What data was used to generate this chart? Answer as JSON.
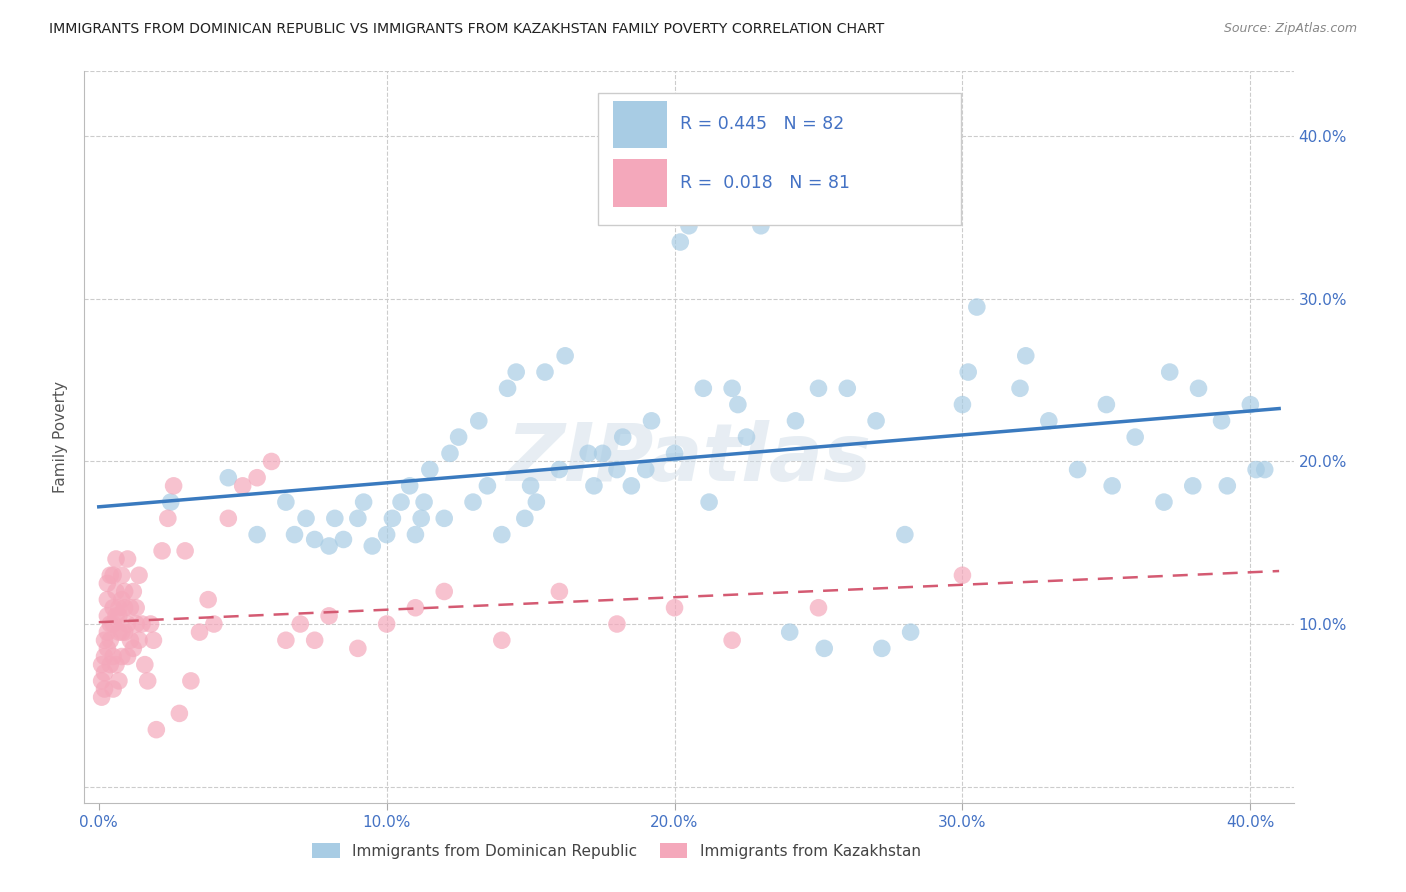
{
  "title": "IMMIGRANTS FROM DOMINICAN REPUBLIC VS IMMIGRANTS FROM KAZAKHSTAN FAMILY POVERTY CORRELATION CHART",
  "source": "Source: ZipAtlas.com",
  "ylabel": "Family Poverty",
  "ytick_values": [
    0.0,
    0.1,
    0.2,
    0.3,
    0.4
  ],
  "xtick_values": [
    0.0,
    0.1,
    0.2,
    0.3,
    0.4
  ],
  "xlim": [
    -0.005,
    0.415
  ],
  "ylim": [
    -0.01,
    0.44
  ],
  "legend1_label": "Immigrants from Dominican Republic",
  "legend2_label": "Immigrants from Kazakhstan",
  "R1": 0.445,
  "N1": 82,
  "R2": 0.018,
  "N2": 81,
  "color_blue": "#a8cce4",
  "color_pink": "#f4a8bb",
  "line_blue": "#3a7abf",
  "line_pink": "#d45a72",
  "axis_color": "#4472c4",
  "watermark": "ZIPatlas",
  "background": "#ffffff",
  "blue_scatter_x": [
    0.025,
    0.045,
    0.055,
    0.065,
    0.068,
    0.072,
    0.075,
    0.08,
    0.082,
    0.085,
    0.09,
    0.092,
    0.095,
    0.1,
    0.102,
    0.105,
    0.108,
    0.11,
    0.112,
    0.113,
    0.115,
    0.12,
    0.122,
    0.125,
    0.13,
    0.132,
    0.135,
    0.14,
    0.142,
    0.145,
    0.148,
    0.15,
    0.152,
    0.155,
    0.16,
    0.162,
    0.17,
    0.172,
    0.175,
    0.18,
    0.182,
    0.185,
    0.19,
    0.192,
    0.2,
    0.202,
    0.205,
    0.21,
    0.212,
    0.22,
    0.222,
    0.225,
    0.23,
    0.232,
    0.24,
    0.242,
    0.25,
    0.252,
    0.26,
    0.27,
    0.272,
    0.28,
    0.282,
    0.3,
    0.302,
    0.305,
    0.32,
    0.322,
    0.33,
    0.34,
    0.35,
    0.352,
    0.36,
    0.37,
    0.372,
    0.38,
    0.382,
    0.39,
    0.392,
    0.4,
    0.402,
    0.405
  ],
  "blue_scatter_y": [
    0.175,
    0.19,
    0.155,
    0.175,
    0.155,
    0.165,
    0.152,
    0.148,
    0.165,
    0.152,
    0.165,
    0.175,
    0.148,
    0.155,
    0.165,
    0.175,
    0.185,
    0.155,
    0.165,
    0.175,
    0.195,
    0.165,
    0.205,
    0.215,
    0.175,
    0.225,
    0.185,
    0.155,
    0.245,
    0.255,
    0.165,
    0.185,
    0.175,
    0.255,
    0.195,
    0.265,
    0.205,
    0.185,
    0.205,
    0.195,
    0.215,
    0.185,
    0.195,
    0.225,
    0.205,
    0.335,
    0.345,
    0.245,
    0.175,
    0.245,
    0.235,
    0.215,
    0.345,
    0.355,
    0.095,
    0.225,
    0.245,
    0.085,
    0.245,
    0.225,
    0.085,
    0.155,
    0.095,
    0.235,
    0.255,
    0.295,
    0.245,
    0.265,
    0.225,
    0.195,
    0.235,
    0.185,
    0.215,
    0.175,
    0.255,
    0.185,
    0.245,
    0.225,
    0.185,
    0.235,
    0.195,
    0.195
  ],
  "pink_scatter_x": [
    0.001,
    0.001,
    0.001,
    0.002,
    0.002,
    0.002,
    0.002,
    0.003,
    0.003,
    0.003,
    0.003,
    0.003,
    0.004,
    0.004,
    0.004,
    0.004,
    0.005,
    0.005,
    0.005,
    0.005,
    0.005,
    0.006,
    0.006,
    0.006,
    0.006,
    0.007,
    0.007,
    0.007,
    0.007,
    0.008,
    0.008,
    0.008,
    0.008,
    0.009,
    0.009,
    0.009,
    0.01,
    0.01,
    0.01,
    0.011,
    0.011,
    0.012,
    0.012,
    0.013,
    0.013,
    0.014,
    0.014,
    0.015,
    0.016,
    0.017,
    0.018,
    0.019,
    0.02,
    0.022,
    0.024,
    0.026,
    0.028,
    0.03,
    0.032,
    0.035,
    0.038,
    0.04,
    0.045,
    0.05,
    0.055,
    0.06,
    0.065,
    0.07,
    0.075,
    0.08,
    0.09,
    0.1,
    0.11,
    0.12,
    0.14,
    0.16,
    0.18,
    0.2,
    0.22,
    0.25,
    0.3
  ],
  "pink_scatter_y": [
    0.065,
    0.075,
    0.055,
    0.08,
    0.09,
    0.06,
    0.07,
    0.105,
    0.115,
    0.085,
    0.095,
    0.125,
    0.09,
    0.1,
    0.075,
    0.13,
    0.11,
    0.08,
    0.13,
    0.06,
    0.1,
    0.105,
    0.12,
    0.14,
    0.075,
    0.095,
    0.11,
    0.065,
    0.105,
    0.095,
    0.115,
    0.13,
    0.08,
    0.095,
    0.11,
    0.12,
    0.1,
    0.08,
    0.14,
    0.11,
    0.09,
    0.085,
    0.12,
    0.1,
    0.11,
    0.09,
    0.13,
    0.1,
    0.075,
    0.065,
    0.1,
    0.09,
    0.035,
    0.145,
    0.165,
    0.185,
    0.045,
    0.145,
    0.065,
    0.095,
    0.115,
    0.1,
    0.165,
    0.185,
    0.19,
    0.2,
    0.09,
    0.1,
    0.09,
    0.105,
    0.085,
    0.1,
    0.11,
    0.12,
    0.09,
    0.12,
    0.1,
    0.11,
    0.09,
    0.11,
    0.13
  ]
}
